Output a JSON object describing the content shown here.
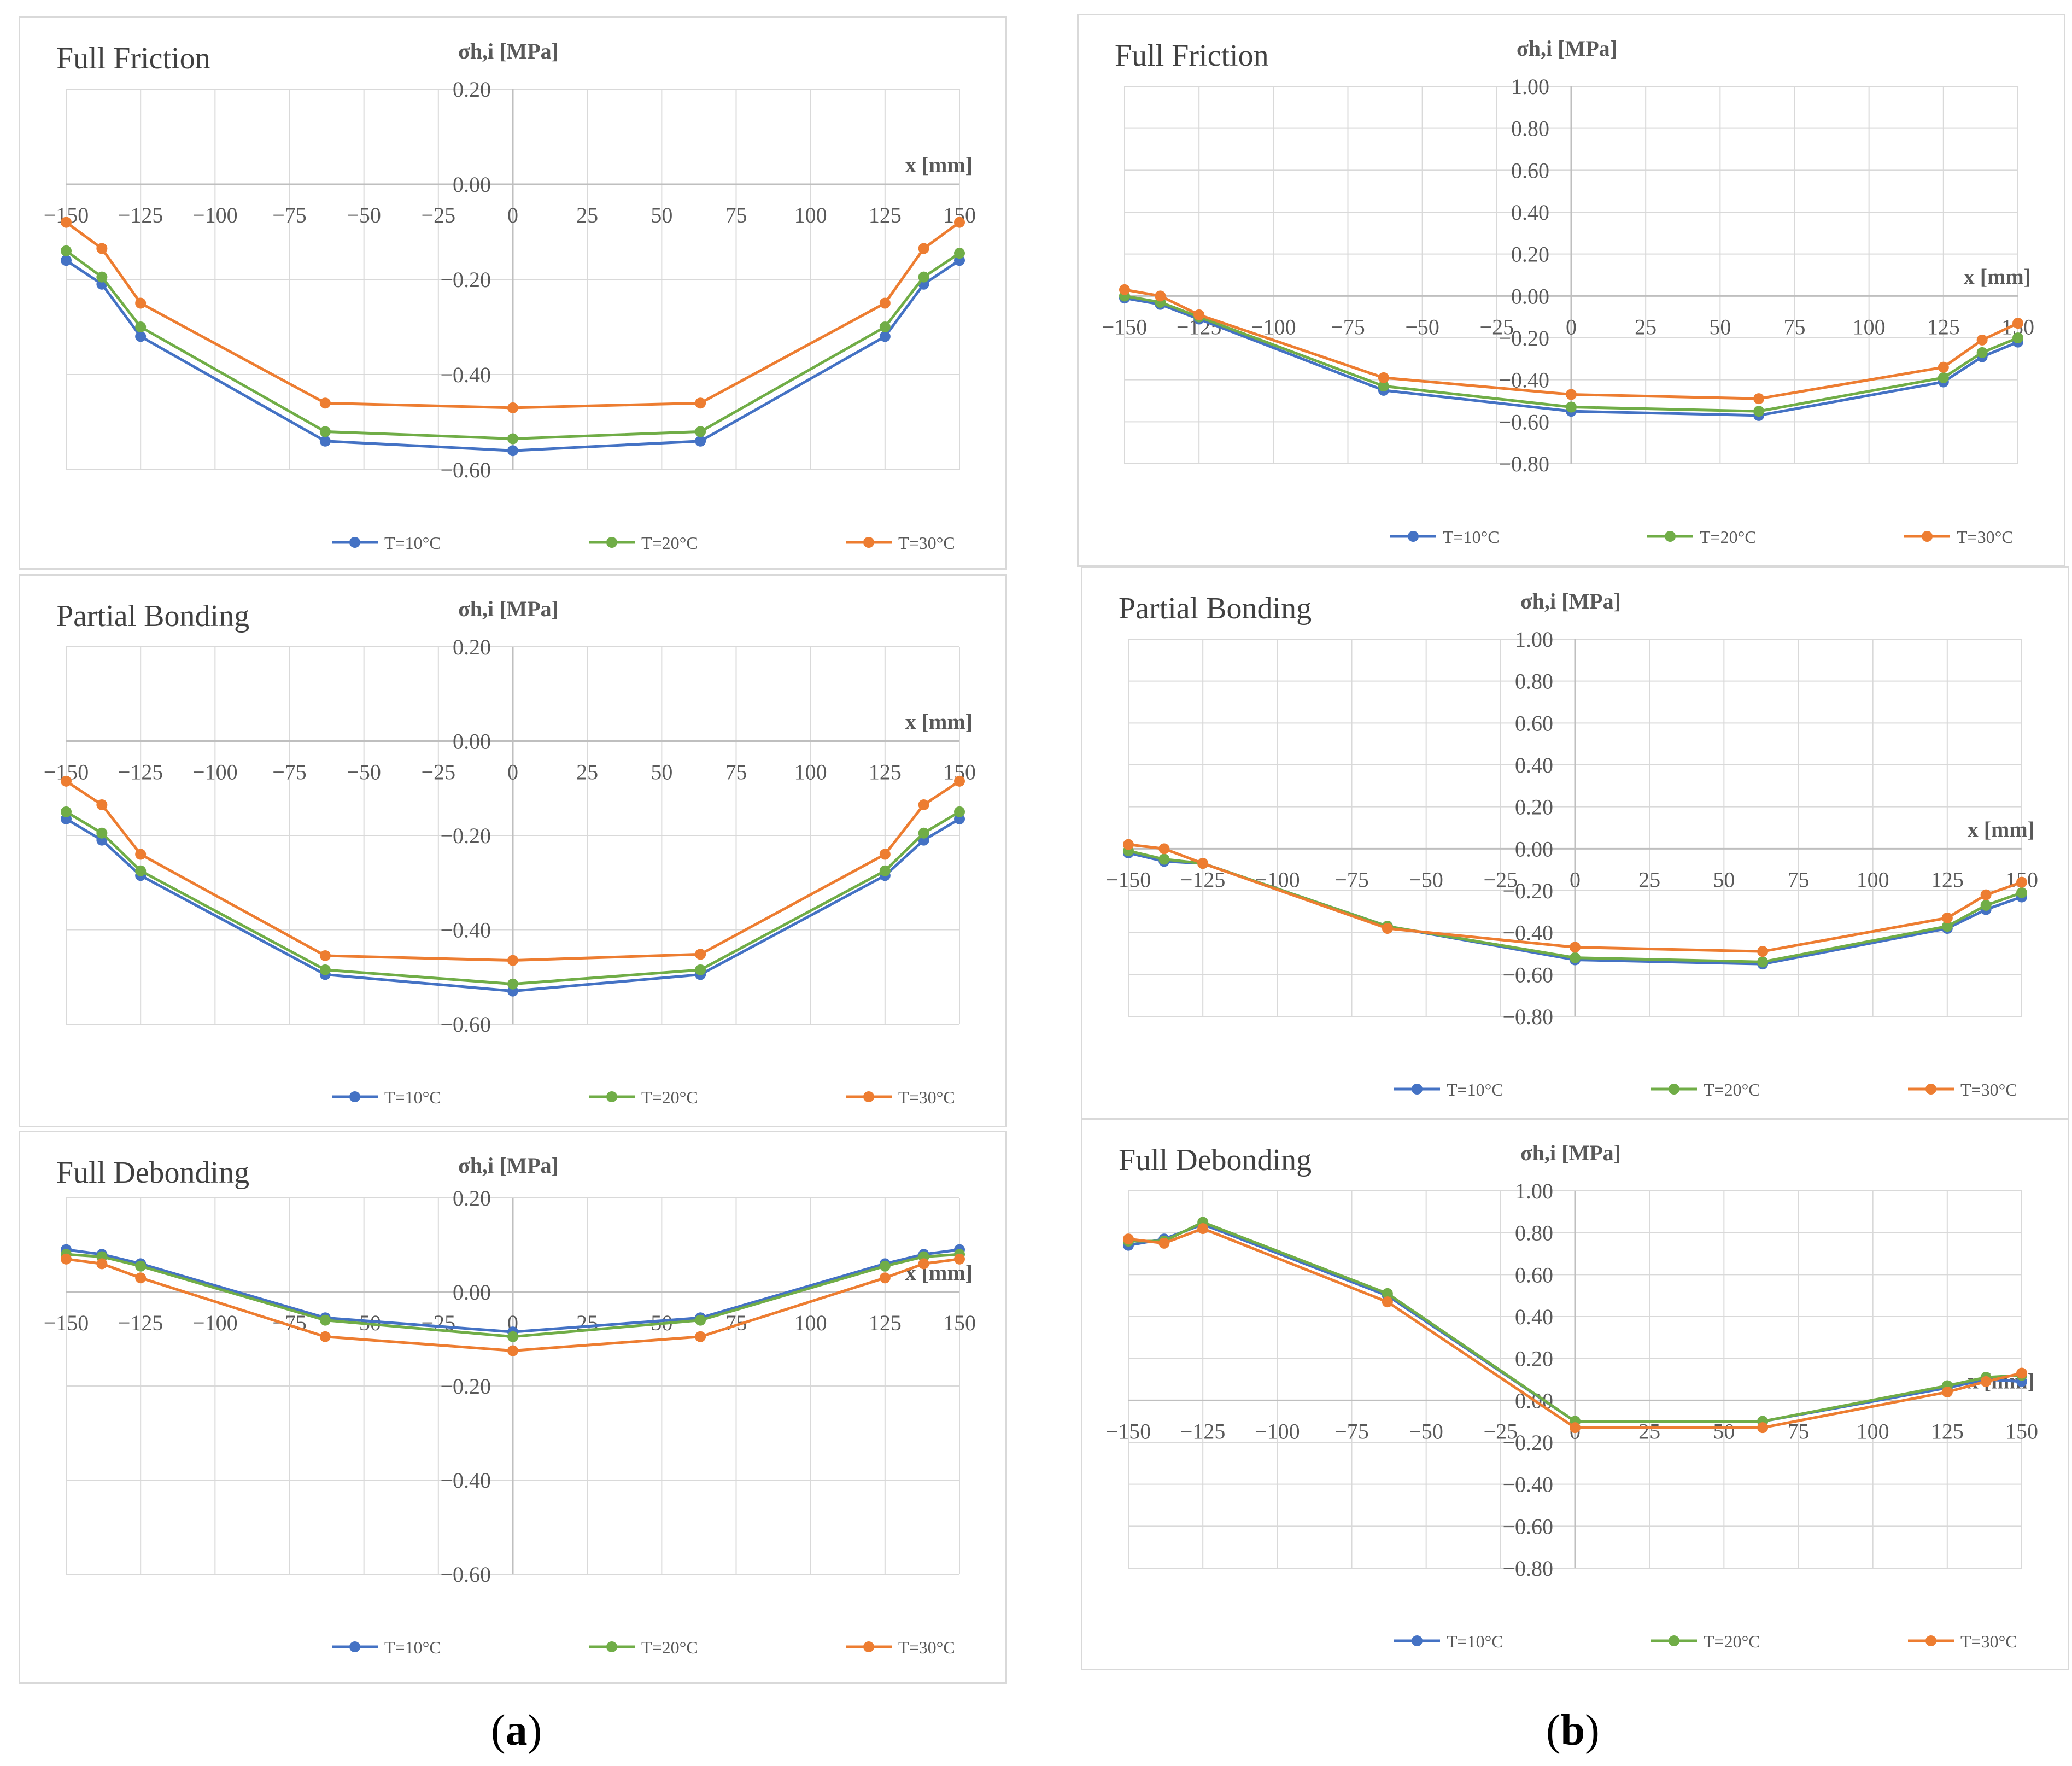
{
  "labels": {
    "a": {
      "open": "(",
      "letter": "a",
      "close": ")"
    },
    "b": {
      "open": "(",
      "letter": "b",
      "close": ")"
    }
  },
  "legend_colors": {
    "T=10°C": "#4472C4",
    "T=20°C": "#70AD47",
    "T=30°C": "#ED7D31"
  },
  "chart_data": [
    {
      "id": "a-friction",
      "type": "line",
      "title": "Full Friction",
      "xlabel": "x [mm]",
      "ylabel": "σh,i [MPa]",
      "xlim": [
        -150,
        150
      ],
      "ylim": [
        -0.6,
        0.2
      ],
      "xticks": [
        -150,
        -125,
        -100,
        -75,
        -50,
        -25,
        0,
        25,
        50,
        75,
        100,
        125,
        150
      ],
      "yticks": [
        -0.6,
        -0.4,
        -0.2,
        0.0,
        0.2
      ],
      "xtick_labels": [
        "−150",
        "−125",
        "−100",
        "−75",
        "−50",
        "−25",
        "0",
        "25",
        "50",
        "75",
        "100",
        "125",
        "150"
      ],
      "ytick_labels": [
        "−0.60",
        "−0.40",
        "−0.20",
        "0.00",
        "0.20"
      ],
      "x": [
        -150,
        -138,
        -125,
        -63,
        0,
        63,
        125,
        138,
        150
      ],
      "series": [
        {
          "name": "T=10°C",
          "values": [
            -0.16,
            -0.21,
            -0.32,
            -0.54,
            -0.56,
            -0.54,
            -0.32,
            -0.21,
            -0.16
          ]
        },
        {
          "name": "T=20°C",
          "values": [
            -0.14,
            -0.195,
            -0.3,
            -0.52,
            -0.535,
            -0.52,
            -0.3,
            -0.195,
            -0.145
          ]
        },
        {
          "name": "T=30°C",
          "values": [
            -0.08,
            -0.135,
            -0.25,
            -0.46,
            -0.47,
            -0.46,
            -0.25,
            -0.135,
            -0.08
          ]
        }
      ]
    },
    {
      "id": "a-partial",
      "type": "line",
      "title": "Partial Bonding",
      "xlabel": "x [mm]",
      "ylabel": "σh,i [MPa]",
      "xlim": [
        -150,
        150
      ],
      "ylim": [
        -0.6,
        0.2
      ],
      "xticks": [
        -150,
        -125,
        -100,
        -75,
        -50,
        -25,
        0,
        25,
        50,
        75,
        100,
        125,
        150
      ],
      "yticks": [
        -0.6,
        -0.4,
        -0.2,
        0.0,
        0.2
      ],
      "xtick_labels": [
        "−150",
        "−125",
        "−100",
        "−75",
        "−50",
        "−25",
        "0",
        "25",
        "50",
        "75",
        "100",
        "125",
        "150"
      ],
      "ytick_labels": [
        "−0.60",
        "−0.40",
        "−0.20",
        "0.00",
        "0.20"
      ],
      "x": [
        -150,
        -138,
        -125,
        -63,
        0,
        63,
        125,
        138,
        150
      ],
      "series": [
        {
          "name": "T=10°C",
          "values": [
            -0.165,
            -0.21,
            -0.285,
            -0.495,
            -0.53,
            -0.495,
            -0.285,
            -0.21,
            -0.165
          ]
        },
        {
          "name": "T=20°C",
          "values": [
            -0.15,
            -0.195,
            -0.275,
            -0.485,
            -0.515,
            -0.485,
            -0.275,
            -0.195,
            -0.15
          ]
        },
        {
          "name": "T=30°C",
          "values": [
            -0.085,
            -0.135,
            -0.24,
            -0.455,
            -0.465,
            -0.452,
            -0.24,
            -0.135,
            -0.085
          ]
        }
      ]
    },
    {
      "id": "a-debonding",
      "type": "line",
      "title": "Full Debonding",
      "xlabel": "x [mm]",
      "ylabel": "σh,i [MPa]",
      "xlim": [
        -150,
        150
      ],
      "ylim": [
        -0.6,
        0.2
      ],
      "xticks": [
        -150,
        -125,
        -100,
        -75,
        -50,
        -25,
        0,
        25,
        50,
        75,
        100,
        125,
        150
      ],
      "yticks": [
        -0.6,
        -0.4,
        -0.2,
        0.0,
        0.2
      ],
      "xtick_labels": [
        "−150",
        "−125",
        "−100",
        "−75",
        "−50",
        "−25",
        "0",
        "25",
        "50",
        "75",
        "100",
        "125",
        "150"
      ],
      "ytick_labels": [
        "−0.60",
        "−0.40",
        "−0.20",
        "0.00",
        "0.20"
      ],
      "x": [
        -150,
        -138,
        -125,
        -63,
        0,
        63,
        125,
        138,
        150
      ],
      "series": [
        {
          "name": "T=10°C",
          "values": [
            0.09,
            0.08,
            0.06,
            -0.055,
            -0.085,
            -0.055,
            0.06,
            0.08,
            0.09
          ]
        },
        {
          "name": "T=20°C",
          "values": [
            0.08,
            0.075,
            0.055,
            -0.06,
            -0.095,
            -0.06,
            0.055,
            0.075,
            0.08
          ]
        },
        {
          "name": "T=30°C",
          "values": [
            0.07,
            0.06,
            0.03,
            -0.095,
            -0.125,
            -0.095,
            0.03,
            0.06,
            0.07
          ]
        }
      ]
    },
    {
      "id": "b-friction",
      "type": "line",
      "title": "Full Friction",
      "xlabel": "x [mm]",
      "ylabel": "σh,i [MPa]",
      "xlim": [
        -150,
        150
      ],
      "ylim": [
        -0.8,
        1.0
      ],
      "xticks": [
        -150,
        -125,
        -100,
        -75,
        -50,
        -25,
        0,
        25,
        50,
        75,
        100,
        125,
        150
      ],
      "yticks": [
        -0.8,
        -0.6,
        -0.4,
        -0.2,
        0.0,
        0.2,
        0.4,
        0.6,
        0.8,
        1.0
      ],
      "xtick_labels": [
        "−150",
        "−125",
        "−100",
        "−75",
        "−50",
        "−25",
        "0",
        "25",
        "50",
        "75",
        "100",
        "125",
        "150"
      ],
      "ytick_labels": [
        "−0.80",
        "−0.60",
        "−0.40",
        "−0.20",
        "0.00",
        "0.20",
        "0.40",
        "0.60",
        "0.80",
        "1.00"
      ],
      "x": [
        -150,
        -138,
        -125,
        -63,
        0,
        63,
        125,
        138,
        150
      ],
      "series": [
        {
          "name": "T=10°C",
          "values": [
            -0.01,
            -0.04,
            -0.11,
            -0.45,
            -0.55,
            -0.57,
            -0.41,
            -0.29,
            -0.22
          ]
        },
        {
          "name": "T=20°C",
          "values": [
            0.0,
            -0.03,
            -0.1,
            -0.43,
            -0.53,
            -0.55,
            -0.39,
            -0.27,
            -0.2
          ]
        },
        {
          "name": "T=30°C",
          "values": [
            0.03,
            0.0,
            -0.09,
            -0.39,
            -0.47,
            -0.49,
            -0.34,
            -0.21,
            -0.13
          ]
        }
      ]
    },
    {
      "id": "b-partial",
      "type": "line",
      "title": "Partial Bonding",
      "xlabel": "x [mm]",
      "ylabel": "σh,i [MPa]",
      "xlim": [
        -150,
        150
      ],
      "ylim": [
        -0.8,
        1.0
      ],
      "xticks": [
        -150,
        -125,
        -100,
        -75,
        -50,
        -25,
        0,
        25,
        50,
        75,
        100,
        125,
        150
      ],
      "yticks": [
        -0.8,
        -0.6,
        -0.4,
        -0.2,
        0.0,
        0.2,
        0.4,
        0.6,
        0.8,
        1.0
      ],
      "xtick_labels": [
        "−150",
        "−125",
        "−100",
        "−75",
        "−50",
        "−25",
        "0",
        "25",
        "50",
        "75",
        "100",
        "125",
        "150"
      ],
      "ytick_labels": [
        "−0.80",
        "−0.60",
        "−0.40",
        "−0.20",
        "0.00",
        "0.20",
        "0.40",
        "0.60",
        "0.80",
        "1.00"
      ],
      "x": [
        -150,
        -138,
        -125,
        -63,
        0,
        63,
        125,
        138,
        150
      ],
      "series": [
        {
          "name": "T=10°C",
          "values": [
            -0.02,
            -0.06,
            -0.07,
            -0.37,
            -0.53,
            -0.55,
            -0.38,
            -0.29,
            -0.23
          ]
        },
        {
          "name": "T=20°C",
          "values": [
            -0.01,
            -0.05,
            -0.07,
            -0.37,
            -0.52,
            -0.54,
            -0.37,
            -0.27,
            -0.21
          ]
        },
        {
          "name": "T=30°C",
          "values": [
            0.02,
            0.0,
            -0.07,
            -0.38,
            -0.47,
            -0.49,
            -0.33,
            -0.22,
            -0.16
          ]
        }
      ]
    },
    {
      "id": "b-debonding",
      "type": "line",
      "title": "Full Debonding",
      "xlabel": "x [mm]",
      "ylabel": "σh,i [MPa]",
      "xlim": [
        -150,
        150
      ],
      "ylim": [
        -0.8,
        1.0
      ],
      "xticks": [
        -150,
        -125,
        -100,
        -75,
        -50,
        -25,
        0,
        25,
        50,
        75,
        100,
        125,
        150
      ],
      "yticks": [
        -0.8,
        -0.6,
        -0.4,
        -0.2,
        0.0,
        0.2,
        0.4,
        0.6,
        0.8,
        1.0
      ],
      "xtick_labels": [
        "−150",
        "−125",
        "−100",
        "−75",
        "−50",
        "−25",
        "0",
        "25",
        "50",
        "75",
        "100",
        "125",
        "150"
      ],
      "ytick_labels": [
        "−0.80",
        "−0.60",
        "−0.40",
        "−0.20",
        "0.00",
        "0.20",
        "0.40",
        "0.60",
        "0.80",
        "1.00"
      ],
      "x": [
        -150,
        -138,
        -125,
        -63,
        0,
        63,
        125,
        138,
        150
      ],
      "series": [
        {
          "name": "T=10°C",
          "values": [
            0.74,
            0.77,
            0.84,
            0.5,
            -0.1,
            -0.1,
            0.06,
            0.1,
            0.09
          ]
        },
        {
          "name": "T=20°C",
          "values": [
            0.76,
            0.76,
            0.85,
            0.51,
            -0.1,
            -0.1,
            0.07,
            0.11,
            0.12
          ]
        },
        {
          "name": "T=30°C",
          "values": [
            0.77,
            0.75,
            0.82,
            0.47,
            -0.13,
            -0.13,
            0.04,
            0.09,
            0.13
          ]
        }
      ]
    }
  ]
}
